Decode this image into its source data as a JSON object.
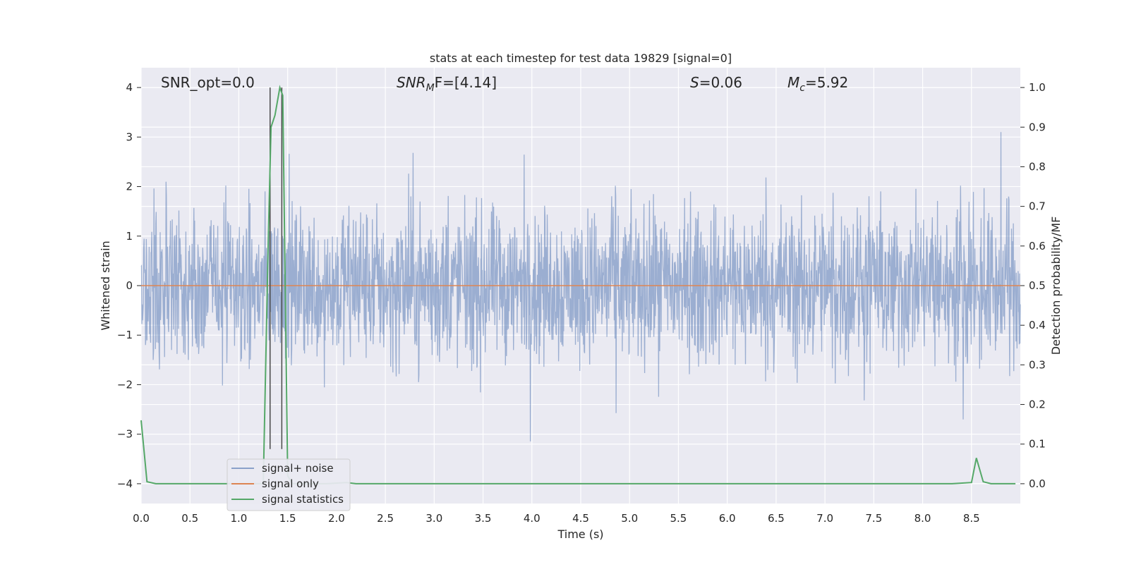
{
  "chart_data": {
    "type": "line",
    "title": "stats at each timestep for test data 19829 [signal=0]",
    "xlabel": "Time (s)",
    "ylabel_left": "Whitened strain",
    "ylabel_right": "Detection probability/MF",
    "xlim": [
      0.0,
      9.0
    ],
    "ylim_left": [
      -4.4,
      4.4
    ],
    "ylim_right": [
      -0.05,
      1.05
    ],
    "x_ticks": [
      "0.0",
      "0.5",
      "1.0",
      "1.5",
      "2.0",
      "2.5",
      "3.0",
      "3.5",
      "4.0",
      "4.5",
      "5.0",
      "5.5",
      "6.0",
      "6.5",
      "7.0",
      "7.5",
      "8.0",
      "8.5"
    ],
    "y_ticks_left": [
      "4",
      "3",
      "2",
      "1",
      "0",
      "−1",
      "−2",
      "−3",
      "−4"
    ],
    "y_ticks_right": [
      "1.0",
      "0.9",
      "0.8",
      "0.7",
      "0.6",
      "0.5",
      "0.4",
      "0.3",
      "0.2",
      "0.1",
      "0.0"
    ],
    "grid": true,
    "legend_position": "lower-left",
    "annotations": {
      "snr_opt": "SNR_opt=0.0",
      "snr_mf_base": "SNR",
      "snr_mf_sub": "M",
      "snr_mf_after": "F=[4.14]",
      "s_letter": "S",
      "s_value": "=0.06",
      "mc_letter": "M",
      "mc_sub": "c",
      "mc_value": "=5.92"
    },
    "series": [
      {
        "name": "signal+ noise",
        "axis": "left",
        "color": "#4c72b0",
        "description_values": {
          "x_range": [
            0.0,
            9.0
          ],
          "envelope_upper_typical": 2.2,
          "envelope_lower_typical": -2.2,
          "max": 4.0,
          "min": -3.7
        }
      },
      {
        "name": "signal only",
        "axis": "left",
        "color": "#dd8452",
        "x": [
          0.0,
          9.0
        ],
        "y": [
          0.0,
          0.0
        ]
      },
      {
        "name": "signal statistics",
        "axis": "right",
        "color": "#55a868",
        "x": [
          0.0,
          0.06,
          0.15,
          0.3,
          1.0,
          1.2,
          1.25,
          1.3,
          1.33,
          1.37,
          1.42,
          1.45,
          1.5,
          1.55,
          1.6,
          1.9,
          2.1,
          2.2,
          2.3,
          3.0,
          5.0,
          7.0,
          8.3,
          8.5,
          8.55,
          8.62,
          8.7,
          8.95
        ],
        "y": [
          0.16,
          0.005,
          0.0,
          0.0,
          0.0,
          0.0,
          0.0,
          0.6,
          0.9,
          0.93,
          1.0,
          0.98,
          0.02,
          0.0,
          0.0,
          0.0,
          0.003,
          0.0,
          0.0,
          0.0,
          0.0,
          0.0,
          0.0,
          0.003,
          0.065,
          0.005,
          0.0,
          0.0
        ]
      }
    ],
    "vertical_markers": {
      "color": "#4a4a4a",
      "x": [
        1.32,
        1.44
      ]
    }
  }
}
